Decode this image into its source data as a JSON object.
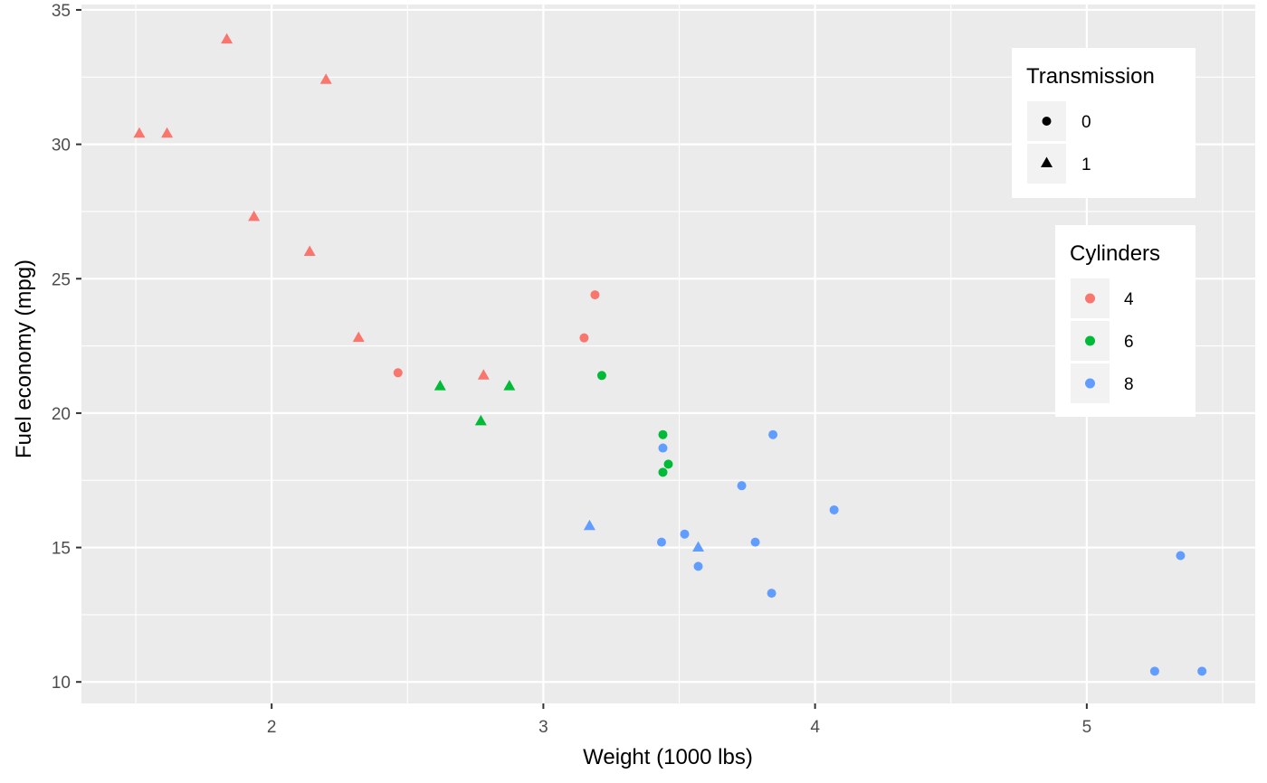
{
  "chart_data": {
    "type": "scatter",
    "title": "",
    "xlabel": "Weight (1000 lbs)",
    "ylabel": "Fuel economy (mpg)",
    "xlim": [
      1.3,
      5.62
    ],
    "ylim": [
      9.2,
      35.2
    ],
    "x_ticks": [
      2,
      3,
      4,
      5
    ],
    "y_ticks": [
      10,
      15,
      20,
      25,
      30,
      35
    ],
    "grid": true,
    "legend_placement": "top-right",
    "legends": [
      {
        "title": "Transmission",
        "aesthetic": "shape",
        "entries": [
          {
            "label": "0",
            "shape": "circle"
          },
          {
            "label": "1",
            "shape": "triangle"
          }
        ]
      },
      {
        "title": "Cylinders",
        "aesthetic": "color",
        "entries": [
          {
            "label": "4",
            "color": "#F8766D"
          },
          {
            "label": "6",
            "color": "#00BA38"
          },
          {
            "label": "8",
            "color": "#619CFF"
          }
        ]
      }
    ],
    "colors": {
      "4": "#F8766D",
      "6": "#00BA38",
      "8": "#619CFF"
    },
    "points": [
      {
        "x": 1.513,
        "y": 30.4,
        "cyl": "4",
        "am": "1"
      },
      {
        "x": 1.615,
        "y": 30.4,
        "cyl": "4",
        "am": "1"
      },
      {
        "x": 1.835,
        "y": 33.9,
        "cyl": "4",
        "am": "1"
      },
      {
        "x": 1.935,
        "y": 27.3,
        "cyl": "4",
        "am": "1"
      },
      {
        "x": 2.14,
        "y": 26.0,
        "cyl": "4",
        "am": "1"
      },
      {
        "x": 2.2,
        "y": 32.4,
        "cyl": "4",
        "am": "1"
      },
      {
        "x": 2.32,
        "y": 22.8,
        "cyl": "4",
        "am": "1"
      },
      {
        "x": 2.465,
        "y": 21.5,
        "cyl": "4",
        "am": "0"
      },
      {
        "x": 2.78,
        "y": 21.4,
        "cyl": "4",
        "am": "1"
      },
      {
        "x": 3.15,
        "y": 22.8,
        "cyl": "4",
        "am": "0"
      },
      {
        "x": 3.19,
        "y": 24.4,
        "cyl": "4",
        "am": "0"
      },
      {
        "x": 2.62,
        "y": 21.0,
        "cyl": "6",
        "am": "1"
      },
      {
        "x": 2.77,
        "y": 19.7,
        "cyl": "6",
        "am": "1"
      },
      {
        "x": 2.875,
        "y": 21.0,
        "cyl": "6",
        "am": "1"
      },
      {
        "x": 3.215,
        "y": 21.4,
        "cyl": "6",
        "am": "0"
      },
      {
        "x": 3.44,
        "y": 19.2,
        "cyl": "6",
        "am": "0"
      },
      {
        "x": 3.44,
        "y": 17.8,
        "cyl": "6",
        "am": "0"
      },
      {
        "x": 3.46,
        "y": 18.1,
        "cyl": "6",
        "am": "0"
      },
      {
        "x": 3.17,
        "y": 15.8,
        "cyl": "8",
        "am": "1"
      },
      {
        "x": 3.435,
        "y": 15.2,
        "cyl": "8",
        "am": "0"
      },
      {
        "x": 3.44,
        "y": 18.7,
        "cyl": "8",
        "am": "0"
      },
      {
        "x": 3.52,
        "y": 15.5,
        "cyl": "8",
        "am": "0"
      },
      {
        "x": 3.57,
        "y": 14.3,
        "cyl": "8",
        "am": "0"
      },
      {
        "x": 3.57,
        "y": 15.0,
        "cyl": "8",
        "am": "1"
      },
      {
        "x": 3.73,
        "y": 17.3,
        "cyl": "8",
        "am": "0"
      },
      {
        "x": 3.78,
        "y": 15.2,
        "cyl": "8",
        "am": "0"
      },
      {
        "x": 3.84,
        "y": 13.3,
        "cyl": "8",
        "am": "0"
      },
      {
        "x": 3.845,
        "y": 19.2,
        "cyl": "8",
        "am": "0"
      },
      {
        "x": 4.07,
        "y": 16.4,
        "cyl": "8",
        "am": "0"
      },
      {
        "x": 5.25,
        "y": 10.4,
        "cyl": "8",
        "am": "0"
      },
      {
        "x": 5.345,
        "y": 14.7,
        "cyl": "8",
        "am": "0"
      },
      {
        "x": 5.424,
        "y": 10.4,
        "cyl": "8",
        "am": "0"
      }
    ]
  }
}
